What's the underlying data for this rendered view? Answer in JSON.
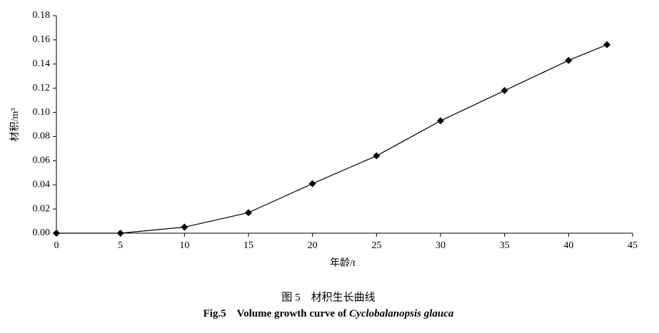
{
  "chart_data": {
    "type": "line",
    "x_label": "年龄/t",
    "y_label": "材积/m³",
    "caption_cn": "图 5　材积生长曲线",
    "caption_en": "Fig.5　Volume growth curve of",
    "caption_en_species": "Cyclobalanopsis glauca",
    "x": [
      0,
      5,
      10,
      15,
      20,
      25,
      30,
      35,
      40,
      43
    ],
    "series": [
      {
        "color": "#000000",
        "values": [
          0,
          0,
          0.005,
          0.017,
          0.041,
          0.064,
          0.093,
          0.118,
          0.143,
          0.156
        ]
      }
    ],
    "xlim": [
      0,
      45
    ],
    "xticks": [
      0,
      5,
      10,
      15,
      20,
      25,
      30,
      35,
      40,
      45
    ],
    "ylim": [
      0,
      0.18
    ],
    "yticks": [
      {
        "value": 0,
        "label": "0.00"
      },
      {
        "value": 0.02,
        "label": "0.02"
      },
      {
        "value": 0.04,
        "label": "0.04"
      },
      {
        "value": 0.06,
        "label": "0.06"
      },
      {
        "value": 0.08,
        "label": "0.08"
      },
      {
        "value": 0.1,
        "label": "0.10"
      },
      {
        "value": 0.12,
        "label": "0.12"
      },
      {
        "value": 0.14,
        "label": "0.14"
      },
      {
        "value": 0.16,
        "label": "0.16"
      },
      {
        "value": 0.18,
        "label": "0.18"
      }
    ],
    "grid": false
  }
}
